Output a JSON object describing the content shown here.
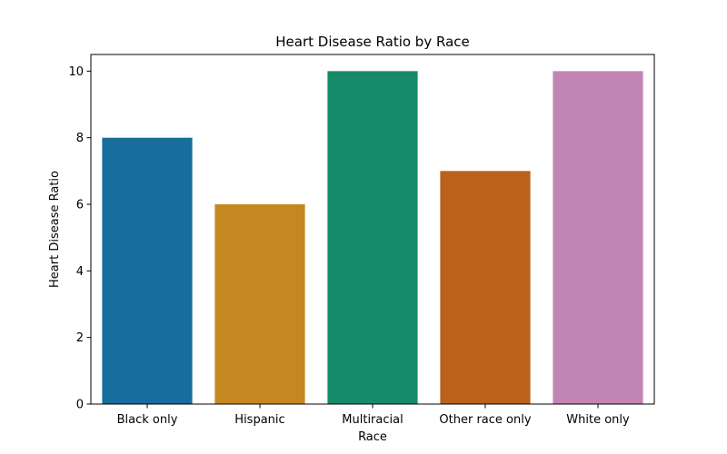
{
  "chart_data": {
    "type": "bar",
    "title": "Heart Disease Ratio by Race",
    "xlabel": "Race",
    "ylabel": "Heart Disease Ratio",
    "categories": [
      "Black only",
      "Hispanic",
      "Multiracial",
      "Other race only",
      "White only"
    ],
    "values": [
      8,
      6,
      10,
      7,
      10
    ],
    "colors": [
      "#176d9c",
      "#c38820",
      "#158b6a",
      "#ba611b",
      "#c284b5"
    ],
    "ylim": [
      0,
      10.5
    ],
    "yticks": [
      0,
      2,
      4,
      6,
      8,
      10
    ],
    "grid": false,
    "legend": "none"
  }
}
